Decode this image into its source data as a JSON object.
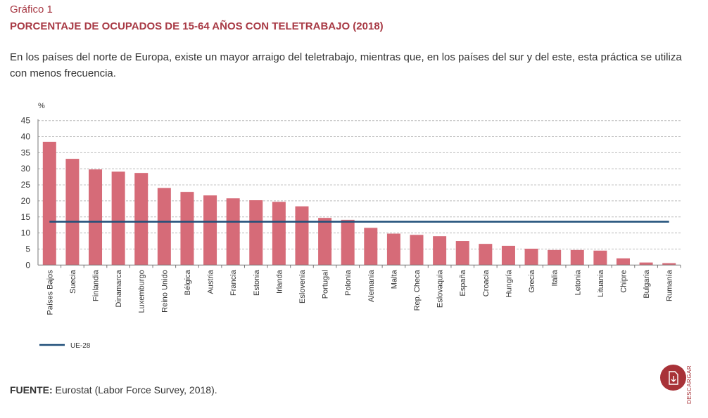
{
  "header": {
    "label": "Gráfico 1",
    "title": "PORCENTAJE DE OCUPADOS DE 15-64 AÑOS CON TELETRABAJO (2018)",
    "intro": "En los países del norte de Europa, existe un mayor arraigo del teletrabajo, mientras que, en los países del sur y del este, esta práctica se utiliza con menos frecuencia."
  },
  "chart_data": {
    "type": "bar",
    "ylabel": "%",
    "ylim": [
      0,
      45
    ],
    "yticks": [
      "0",
      "5",
      "10",
      "15",
      "20",
      "25",
      "30",
      "35",
      "40",
      "45"
    ],
    "grid": true,
    "categories": [
      "Países Bajos",
      "Suecia",
      "Finlandia",
      "Dinamarca",
      "Luxemburgo",
      "Reino Unido",
      "Bélgica",
      "Austria",
      "Francia",
      "Estonia",
      "Irlanda",
      "Eslovenia",
      "Portugal",
      "Polonia",
      "Alemania",
      "Malta",
      "Rep. Checa",
      "Eslovaquia",
      "España",
      "Croacia",
      "Hungría",
      "Grecia",
      "Italia",
      "Letonia",
      "Lituania",
      "Chipre",
      "Bulgaria",
      "Rumanía"
    ],
    "values": [
      38.4,
      33.1,
      29.8,
      29.1,
      28.7,
      24.0,
      22.8,
      21.7,
      20.8,
      20.2,
      19.7,
      18.3,
      14.7,
      14.1,
      11.6,
      9.8,
      9.4,
      9.0,
      7.5,
      6.6,
      6.0,
      5.1,
      4.7,
      4.7,
      4.5,
      2.1,
      0.8,
      0.6
    ],
    "reference_line": {
      "name": "UE-28",
      "value": 13.5
    },
    "legend_placement": "bottom-left",
    "colors": {
      "bars": "#d66b78",
      "line": "#1f4e79"
    }
  },
  "footer": {
    "source_label": "FUENTE:",
    "source_text": " Eurostat (Labor Force Survey, 2018).",
    "download_label": "DESCARGAR",
    "download_icon": "download-file-icon"
  }
}
